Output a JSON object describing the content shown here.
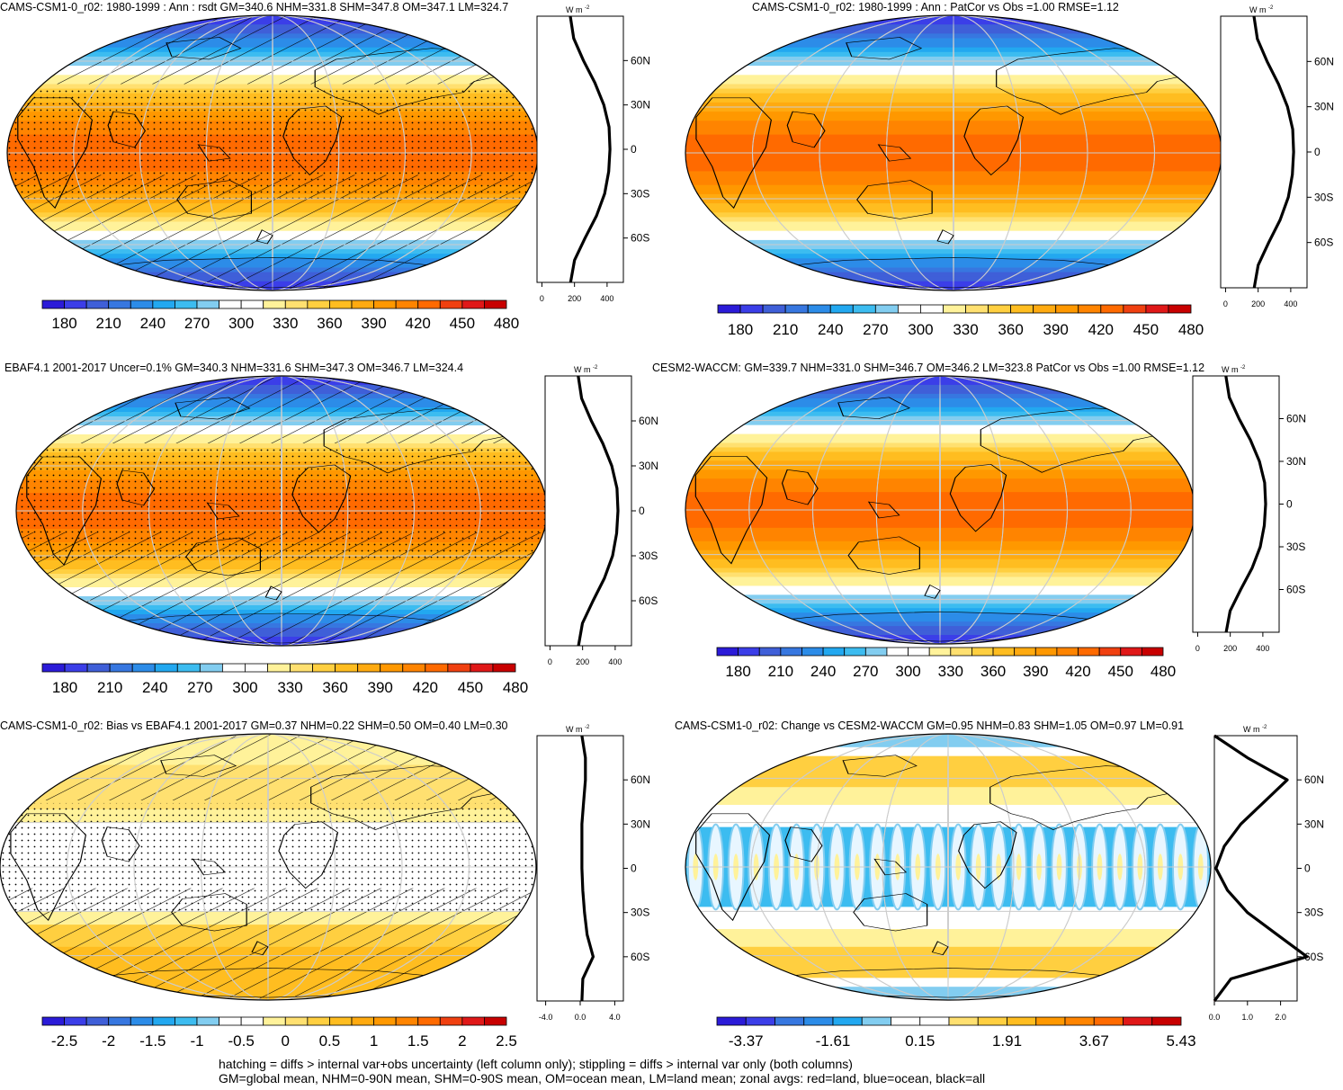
{
  "panels": [
    {
      "title": "CAMS-CSM1-0_r02: 1980-1999 : Ann : rsdt GM=340.6 NHM=331.8 SHM=347.8 OM=347.1 LM=324.7",
      "kind": "clim",
      "hatch": true,
      "stipple": true,
      "colorbar": {
        "labels": [
          "180",
          "210",
          "240",
          "270",
          "300",
          "330",
          "360",
          "390",
          "420",
          "450",
          "480"
        ]
      },
      "zonal": {
        "unit": "W m",
        "unit_exp": "-2",
        "xticks": [
          "0",
          "200",
          "400"
        ],
        "yticks": [
          "60N",
          "30N",
          "0",
          "30S",
          "60S"
        ]
      }
    },
    {
      "title": "CAMS-CSM1-0_r02: 1980-1999 : Ann : PatCor vs Obs =1.00 RMSE=1.12",
      "kind": "clim",
      "hatch": false,
      "stipple": false,
      "colorbar": {
        "labels": [
          "180",
          "210",
          "240",
          "270",
          "300",
          "330",
          "360",
          "390",
          "420",
          "450",
          "480"
        ]
      },
      "zonal": {
        "unit": "W m",
        "unit_exp": "-2",
        "xticks": [
          "0",
          "200",
          "400"
        ],
        "yticks": [
          "60N",
          "30N",
          "0",
          "30S",
          "60S"
        ]
      }
    },
    {
      "title": "EBAF4.1 2001-2017 Uncer=0.1% GM=340.3 NHM=331.6 SHM=347.3 OM=346.7 LM=324.4",
      "kind": "clim",
      "hatch": true,
      "stipple": true,
      "colorbar": {
        "labels": [
          "180",
          "210",
          "240",
          "270",
          "300",
          "330",
          "360",
          "390",
          "420",
          "450",
          "480"
        ]
      },
      "zonal": {
        "unit": "W m",
        "unit_exp": "-2",
        "xticks": [
          "0",
          "200",
          "400"
        ],
        "yticks": [
          "60N",
          "30N",
          "0",
          "30S",
          "60S"
        ]
      }
    },
    {
      "title": "CESM2-WACCM: GM=339.7 NHM=331.0 SHM=346.7 OM=346.2 LM=323.8 PatCor vs Obs =1.00 RMSE=1.12",
      "kind": "clim",
      "hatch": false,
      "stipple": false,
      "colorbar": {
        "labels": [
          "180",
          "210",
          "240",
          "270",
          "300",
          "330",
          "360",
          "390",
          "420",
          "450",
          "480"
        ]
      },
      "zonal": {
        "unit": "W m",
        "unit_exp": "-2",
        "xticks": [
          "0",
          "200",
          "400"
        ],
        "yticks": [
          "60N",
          "30N",
          "0",
          "30S",
          "60S"
        ]
      }
    },
    {
      "title": "CAMS-CSM1-0_r02: Bias vs EBAF4.1 2001-2017 GM=0.37 NHM=0.22 SHM=0.50 OM=0.40 LM=0.30",
      "kind": "bias",
      "hatch": true,
      "stipple": true,
      "colorbar": {
        "labels": [
          "-2.5",
          "-2",
          "-1.5",
          "-1",
          "-0.5",
          "0",
          "0.5",
          "1",
          "1.5",
          "2",
          "2.5"
        ]
      },
      "zonal": {
        "unit": "W m",
        "unit_exp": "-2",
        "xticks": [
          "-4.0",
          "0.0",
          "4.0"
        ],
        "yticks": [
          "60N",
          "30N",
          "0",
          "30S",
          "60S"
        ]
      }
    },
    {
      "title": "CAMS-CSM1-0_r02: Change vs CESM2-WACCM GM=0.95 NHM=0.83 SHM=1.05 OM=0.97 LM=0.91",
      "kind": "change",
      "hatch": false,
      "stipple": false,
      "colorbar": {
        "labels": [
          "-3.37",
          "-1.61",
          "0.15",
          "1.91",
          "3.67",
          "5.43"
        ]
      },
      "zonal": {
        "unit": "W m",
        "unit_exp": "-2",
        "xticks": [
          "0.0",
          "1.0",
          "2.0"
        ],
        "yticks": [
          "60N",
          "30N",
          "0",
          "30S",
          "60S"
        ]
      }
    }
  ],
  "palette": [
    "#2b1bd8",
    "#3b3ee8",
    "#3f5fd8",
    "#3777e0",
    "#2c8ce8",
    "#22a8f0",
    "#3cbcf0",
    "#82cdf0",
    "#ffffff",
    "#ffffff",
    "#fff29a",
    "#ffe070",
    "#ffcf40",
    "#ffbd20",
    "#ffaa10",
    "#ff9800",
    "#ff8400",
    "#ff6a00",
    "#f04010",
    "#e01818",
    "#c80000"
  ],
  "chart_data": [
    {
      "type": "heatmap",
      "title": "CAMS-CSM1-0_r02: 1980-1999 : Ann : rsdt GM=340.6 NHM=331.8 SHM=347.8 OM=347.1 LM=324.7",
      "unit": "W m-2",
      "zonal_mean": {
        "lat": [
          90,
          75,
          60,
          45,
          30,
          15,
          0,
          -15,
          -30,
          -45,
          -60,
          -75,
          -90
        ],
        "value": [
          174,
          195,
          255,
          325,
          380,
          412,
          418,
          410,
          385,
          335,
          265,
          200,
          176
        ]
      }
    },
    {
      "type": "heatmap",
      "title": "CAMS-CSM1-0_r02: 1980-1999 : Ann : PatCor vs Obs =1.00 RMSE=1.12",
      "unit": "W m-2",
      "zonal_mean": {
        "lat": [
          90,
          75,
          60,
          45,
          30,
          15,
          0,
          -15,
          -30,
          -45,
          -60,
          -75,
          -90
        ],
        "value": [
          174,
          195,
          255,
          325,
          380,
          412,
          418,
          410,
          385,
          335,
          265,
          200,
          176
        ]
      }
    },
    {
      "type": "heatmap",
      "title": "EBAF4.1 2001-2017 Uncer=0.1% GM=340.3 NHM=331.6 SHM=347.3 OM=346.7 LM=324.4",
      "unit": "W m-2",
      "zonal_mean": {
        "lat": [
          90,
          75,
          60,
          45,
          30,
          15,
          0,
          -15,
          -30,
          -45,
          -60,
          -75,
          -90
        ],
        "value": [
          173,
          194,
          254,
          324,
          379,
          411,
          417,
          409,
          384,
          334,
          264,
          199,
          175
        ]
      }
    },
    {
      "type": "heatmap",
      "title": "CESM2-WACCM: GM=339.7 NHM=331.0 SHM=346.7 OM=346.2 LM=323.8 PatCor vs Obs =1.00 RMSE=1.12",
      "unit": "W m-2",
      "zonal_mean": {
        "lat": [
          90,
          75,
          60,
          45,
          30,
          15,
          0,
          -15,
          -30,
          -45,
          -60,
          -75,
          -90
        ],
        "value": [
          173,
          194,
          254,
          324,
          379,
          411,
          417,
          409,
          384,
          334,
          264,
          199,
          175
        ]
      }
    },
    {
      "type": "heatmap",
      "title": "CAMS-CSM1-0_r02: Bias vs EBAF4.1 2001-2017 GM=0.37 NHM=0.22 SHM=0.50 OM=0.40 LM=0.30",
      "unit": "W m-2",
      "zonal_mean": {
        "lat": [
          90,
          75,
          60,
          45,
          30,
          15,
          0,
          -15,
          -30,
          -45,
          -60,
          -75,
          -90
        ],
        "value": [
          0.2,
          0.6,
          0.6,
          0.4,
          0.2,
          0.2,
          0.2,
          0.3,
          0.5,
          0.8,
          1.5,
          0.3,
          0.2
        ]
      }
    },
    {
      "type": "heatmap",
      "title": "CAMS-CSM1-0_r02: Change vs CESM2-WACCM GM=0.95 NHM=0.83 SHM=1.05 OM=0.97 LM=0.91",
      "unit": "W m-2",
      "zonal_mean": {
        "lat": [
          90,
          75,
          60,
          45,
          30,
          15,
          0,
          -15,
          -30,
          -45,
          -60,
          -75,
          -90
        ],
        "value": [
          0.0,
          1.0,
          2.2,
          1.5,
          0.8,
          0.3,
          0.05,
          0.4,
          1.0,
          1.9,
          2.8,
          0.5,
          0.0
        ]
      }
    }
  ],
  "footer": {
    "line1": "hatching = diffs > internal var+obs uncertainty (left column only); stippling = diffs > internal var only (both columns)",
    "line2": "GM=global mean, NHM=0-90N mean, SHM=0-90S mean, OM=ocean mean, LM=land mean; zonal avgs: red=land, blue=ocean, black=all"
  }
}
